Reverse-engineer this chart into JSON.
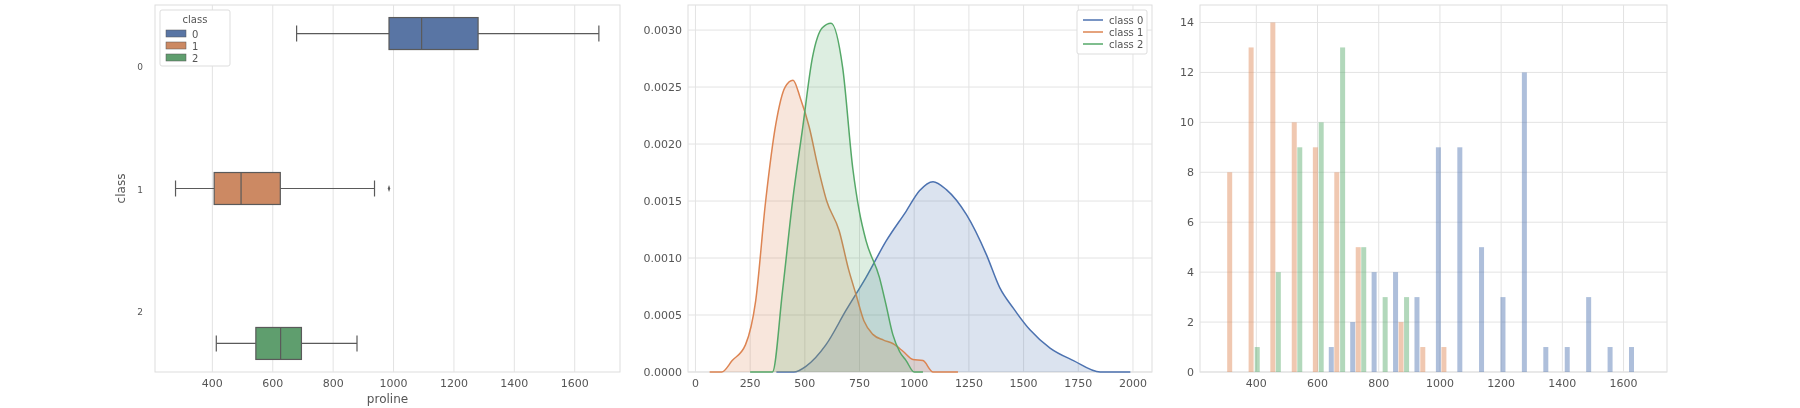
{
  "chart_data": [
    {
      "type": "box",
      "orientation": "horizontal",
      "xlabel": "proline",
      "ylabel": "class",
      "legend_title": "class",
      "legend": "top left",
      "grid": "x",
      "categories": [
        "0",
        "1",
        "2"
      ],
      "xlim": [
        210,
        1750
      ],
      "xticks": [
        400,
        600,
        800,
        1000,
        1200,
        1400,
        1600
      ],
      "series": [
        {
          "name": "0",
          "color": "#5975a4",
          "boxes": [
            {
              "low": 679,
              "q1": 985,
              "median": 1093,
              "q3": 1280,
              "high": 1680
            },
            null,
            null
          ]
        },
        {
          "name": "1",
          "color": "#cc8963",
          "boxes": [
            null,
            {
              "low": 278,
              "q1": 406,
              "median": 495,
              "q3": 625,
              "high": 937,
              "outliers": [
                985
              ]
            },
            null
          ]
        },
        {
          "name": "2",
          "color": "#5f9e6e",
          "boxes": [
            null,
            null,
            {
              "low": 413,
              "q1": 544,
              "median": 626,
              "q3": 695,
              "high": 879
            }
          ]
        }
      ]
    },
    {
      "type": "area",
      "legend": "top right",
      "grid": true,
      "xlim": [
        -34,
        2087
      ],
      "ylim": [
        0,
        0.00322
      ],
      "xticks": [
        0,
        250,
        500,
        750,
        1000,
        1250,
        1500,
        1750,
        2000
      ],
      "yticks": [
        {
          "value": 0,
          "label": "0.0000"
        },
        {
          "value": 0.0005,
          "label": "0.0005"
        },
        {
          "value": 0.001,
          "label": "0.0010"
        },
        {
          "value": 0.0015,
          "label": "0.0015"
        },
        {
          "value": 0.002,
          "label": "0.0020"
        },
        {
          "value": 0.0025,
          "label": "0.0025"
        },
        {
          "value": 0.003,
          "label": "0.0030"
        }
      ],
      "series": [
        {
          "name": "class 0",
          "color": "#4c72b0",
          "x": [
            370,
            450,
            505,
            597,
            688,
            780,
            872,
            963,
            1024,
            1086,
            1147,
            1239,
            1330,
            1391,
            1453,
            1529,
            1621,
            1728,
            1850,
            1988
          ],
          "values": [
            0,
            0,
            5e-05,
            0.00024,
            0.00054,
            0.00083,
            0.00115,
            0.00141,
            0.00159,
            0.00167,
            0.0016,
            0.00138,
            0.00103,
            0.00074,
            0.00056,
            0.00037,
            0.00021,
            0.0001,
            0,
            0
          ]
        },
        {
          "name": "class 1",
          "color": "#dd8452",
          "x": [
            65,
            120,
            168,
            229,
            275,
            321,
            367,
            410,
            446,
            480,
            520,
            560,
            600,
            657,
            700,
            734,
            770,
            811,
            860,
            902,
            950,
            994,
            1040,
            1086,
            1200
          ],
          "values": [
            0,
            0,
            0.0001,
            0.00024,
            0.00062,
            0.0015,
            0.00217,
            0.0025,
            0.00256,
            0.0024,
            0.00215,
            0.0018,
            0.0015,
            0.00124,
            0.0009,
            0.00068,
            0.00045,
            0.00033,
            0.00028,
            0.00025,
            0.00018,
            0.00011,
            0.0001,
            0,
            0
          ]
        },
        {
          "name": "class 2",
          "color": "#55a868",
          "x": [
            250,
            300,
            352,
            398,
            444,
            490,
            535,
            580,
            620,
            673,
            719,
            750,
            780,
            841,
            870,
            902,
            933,
            963,
            1000,
            1040
          ],
          "values": [
            0,
            0,
            0,
            0.00071,
            0.0015,
            0.00214,
            0.00276,
            0.00302,
            0.00306,
            0.00267,
            0.00179,
            0.0014,
            0.00115,
            0.00083,
            0.0006,
            0.00033,
            0.00018,
            0.0001,
            0,
            0
          ]
        }
      ]
    },
    {
      "type": "bar",
      "grid": true,
      "xlim": [
        216,
        1742
      ],
      "ylim": [
        0,
        14.7
      ],
      "xticks": [
        400,
        600,
        800,
        1000,
        1200,
        1400,
        1600
      ],
      "yticks": [
        0,
        2,
        4,
        6,
        8,
        10,
        12,
        14
      ],
      "series": [
        {
          "color": "#4c72b0",
          "x": [
            645,
            715,
            785,
            855,
            925,
            995,
            1065,
            1136,
            1206,
            1276,
            1346,
            1416,
            1486,
            1556,
            1626
          ],
          "values": [
            1,
            2,
            4,
            4,
            3,
            9,
            9,
            5,
            3,
            12,
            1,
            1,
            3,
            1,
            1
          ]
        },
        {
          "color": "#dd8452",
          "x": [
            313,
            383,
            454,
            524,
            593,
            663,
            733,
            873,
            944,
            1013
          ],
          "values": [
            8,
            13,
            14,
            10,
            9,
            8,
            5,
            2,
            1,
            1
          ]
        },
        {
          "color": "#55a868",
          "x": [
            403,
            472,
            542,
            612,
            682,
            751,
            821,
            891
          ],
          "values": [
            1,
            4,
            9,
            10,
            13,
            5,
            3,
            3
          ]
        }
      ]
    }
  ]
}
